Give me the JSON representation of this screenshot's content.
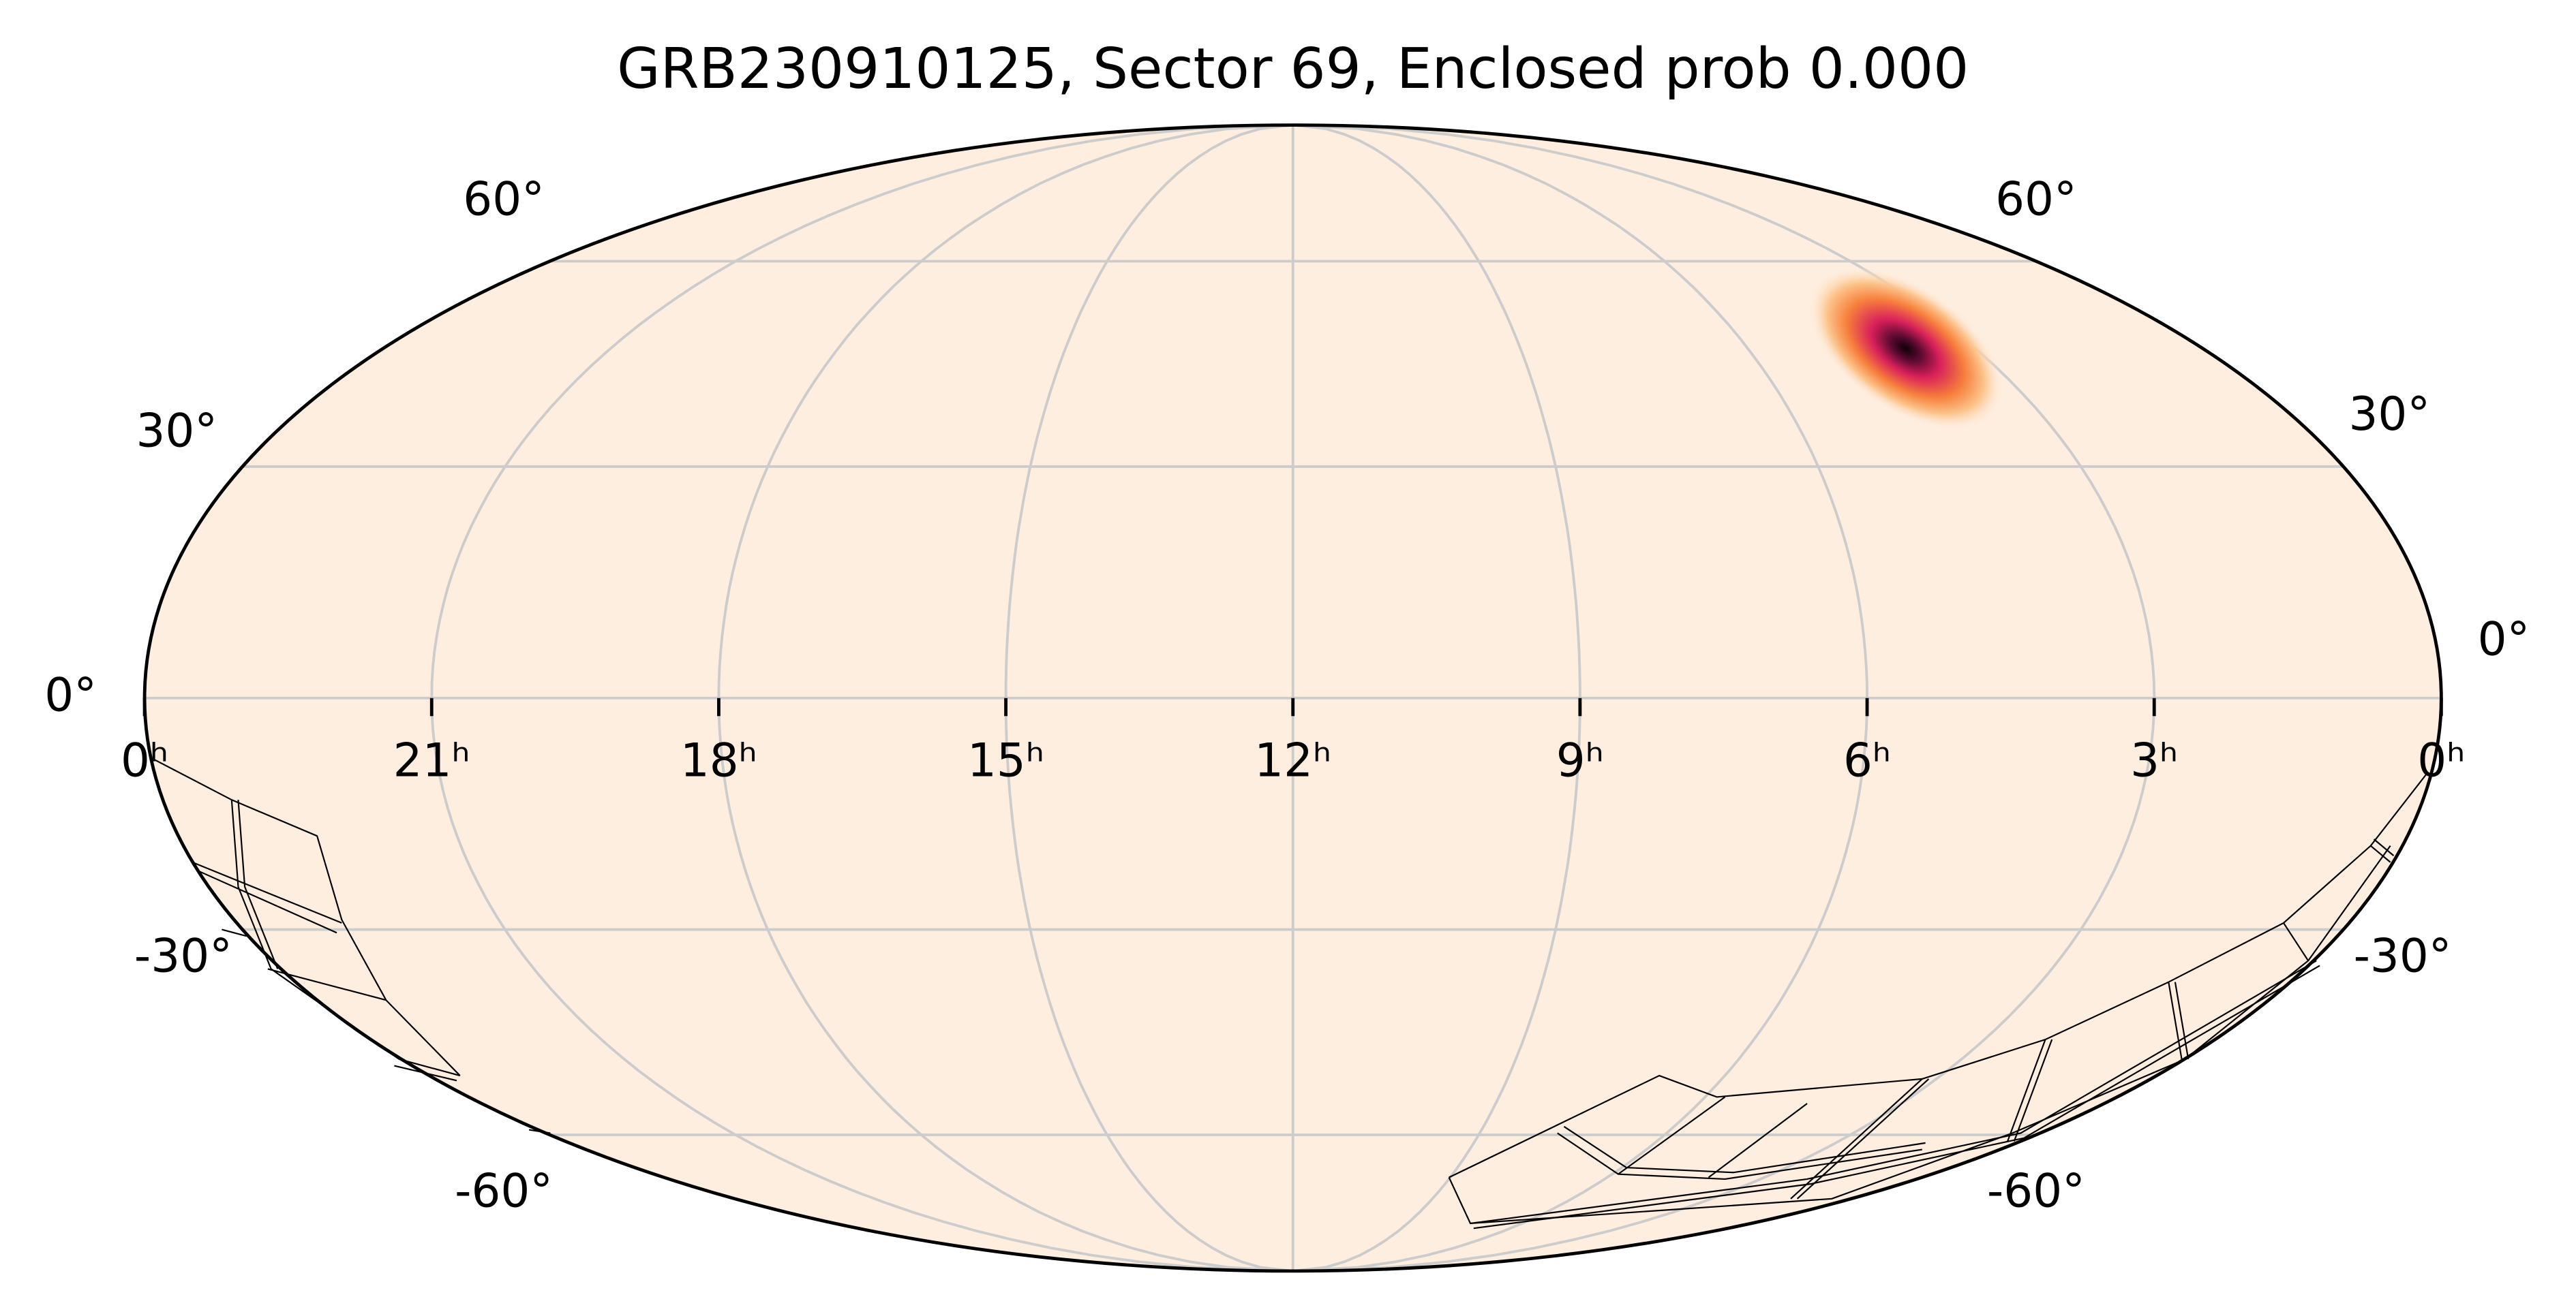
{
  "chart_data": {
    "type": "mollweide",
    "title": "GRB230910125, Sector 69, Enclosed prob 0.000",
    "background": "#feeee0",
    "grid": true,
    "xlim": [
      360,
      0
    ],
    "xticks": [
      {
        "value": 360,
        "label": "0ʰ"
      },
      {
        "value": 315,
        "label": "21ʰ"
      },
      {
        "value": 270,
        "label": "18ʰ"
      },
      {
        "value": 225,
        "label": "15ʰ"
      },
      {
        "value": 180,
        "label": "12ʰ"
      },
      {
        "value": 135,
        "label": "9ʰ"
      },
      {
        "value": 90,
        "label": "6ʰ"
      },
      {
        "value": 45,
        "label": "3ʰ"
      },
      {
        "value": 0,
        "label": "0ʰ"
      }
    ],
    "ylim": [
      -90,
      90
    ],
    "yticks": [
      {
        "value": 60,
        "label": "60°"
      },
      {
        "value": 30,
        "label": "30°"
      },
      {
        "value": 0,
        "label": "0°"
      },
      {
        "value": -30,
        "label": "-30°"
      },
      {
        "value": -60,
        "label": "-60°"
      }
    ]
  }
}
